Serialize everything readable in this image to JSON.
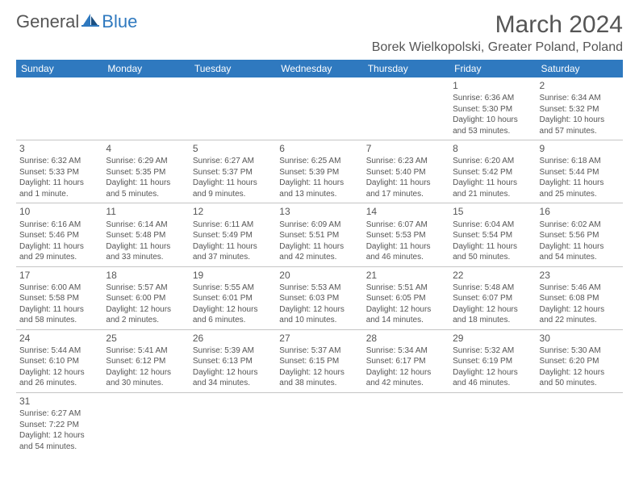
{
  "logo": {
    "text1": "General",
    "text2": "Blue"
  },
  "title": "March 2024",
  "location": "Borek Wielkopolski, Greater Poland, Poland",
  "colors": {
    "header_bg": "#2f79bf",
    "text": "#555555",
    "divider": "#c5c5c5",
    "white": "#ffffff"
  },
  "weekdays": [
    "Sunday",
    "Monday",
    "Tuesday",
    "Wednesday",
    "Thursday",
    "Friday",
    "Saturday"
  ],
  "weeks": [
    [
      null,
      null,
      null,
      null,
      null,
      {
        "n": "1",
        "sr": "Sunrise: 6:36 AM",
        "ss": "Sunset: 5:30 PM",
        "d1": "Daylight: 10 hours",
        "d2": "and 53 minutes."
      },
      {
        "n": "2",
        "sr": "Sunrise: 6:34 AM",
        "ss": "Sunset: 5:32 PM",
        "d1": "Daylight: 10 hours",
        "d2": "and 57 minutes."
      }
    ],
    [
      {
        "n": "3",
        "sr": "Sunrise: 6:32 AM",
        "ss": "Sunset: 5:33 PM",
        "d1": "Daylight: 11 hours",
        "d2": "and 1 minute."
      },
      {
        "n": "4",
        "sr": "Sunrise: 6:29 AM",
        "ss": "Sunset: 5:35 PM",
        "d1": "Daylight: 11 hours",
        "d2": "and 5 minutes."
      },
      {
        "n": "5",
        "sr": "Sunrise: 6:27 AM",
        "ss": "Sunset: 5:37 PM",
        "d1": "Daylight: 11 hours",
        "d2": "and 9 minutes."
      },
      {
        "n": "6",
        "sr": "Sunrise: 6:25 AM",
        "ss": "Sunset: 5:39 PM",
        "d1": "Daylight: 11 hours",
        "d2": "and 13 minutes."
      },
      {
        "n": "7",
        "sr": "Sunrise: 6:23 AM",
        "ss": "Sunset: 5:40 PM",
        "d1": "Daylight: 11 hours",
        "d2": "and 17 minutes."
      },
      {
        "n": "8",
        "sr": "Sunrise: 6:20 AM",
        "ss": "Sunset: 5:42 PM",
        "d1": "Daylight: 11 hours",
        "d2": "and 21 minutes."
      },
      {
        "n": "9",
        "sr": "Sunrise: 6:18 AM",
        "ss": "Sunset: 5:44 PM",
        "d1": "Daylight: 11 hours",
        "d2": "and 25 minutes."
      }
    ],
    [
      {
        "n": "10",
        "sr": "Sunrise: 6:16 AM",
        "ss": "Sunset: 5:46 PM",
        "d1": "Daylight: 11 hours",
        "d2": "and 29 minutes."
      },
      {
        "n": "11",
        "sr": "Sunrise: 6:14 AM",
        "ss": "Sunset: 5:48 PM",
        "d1": "Daylight: 11 hours",
        "d2": "and 33 minutes."
      },
      {
        "n": "12",
        "sr": "Sunrise: 6:11 AM",
        "ss": "Sunset: 5:49 PM",
        "d1": "Daylight: 11 hours",
        "d2": "and 37 minutes."
      },
      {
        "n": "13",
        "sr": "Sunrise: 6:09 AM",
        "ss": "Sunset: 5:51 PM",
        "d1": "Daylight: 11 hours",
        "d2": "and 42 minutes."
      },
      {
        "n": "14",
        "sr": "Sunrise: 6:07 AM",
        "ss": "Sunset: 5:53 PM",
        "d1": "Daylight: 11 hours",
        "d2": "and 46 minutes."
      },
      {
        "n": "15",
        "sr": "Sunrise: 6:04 AM",
        "ss": "Sunset: 5:54 PM",
        "d1": "Daylight: 11 hours",
        "d2": "and 50 minutes."
      },
      {
        "n": "16",
        "sr": "Sunrise: 6:02 AM",
        "ss": "Sunset: 5:56 PM",
        "d1": "Daylight: 11 hours",
        "d2": "and 54 minutes."
      }
    ],
    [
      {
        "n": "17",
        "sr": "Sunrise: 6:00 AM",
        "ss": "Sunset: 5:58 PM",
        "d1": "Daylight: 11 hours",
        "d2": "and 58 minutes."
      },
      {
        "n": "18",
        "sr": "Sunrise: 5:57 AM",
        "ss": "Sunset: 6:00 PM",
        "d1": "Daylight: 12 hours",
        "d2": "and 2 minutes."
      },
      {
        "n": "19",
        "sr": "Sunrise: 5:55 AM",
        "ss": "Sunset: 6:01 PM",
        "d1": "Daylight: 12 hours",
        "d2": "and 6 minutes."
      },
      {
        "n": "20",
        "sr": "Sunrise: 5:53 AM",
        "ss": "Sunset: 6:03 PM",
        "d1": "Daylight: 12 hours",
        "d2": "and 10 minutes."
      },
      {
        "n": "21",
        "sr": "Sunrise: 5:51 AM",
        "ss": "Sunset: 6:05 PM",
        "d1": "Daylight: 12 hours",
        "d2": "and 14 minutes."
      },
      {
        "n": "22",
        "sr": "Sunrise: 5:48 AM",
        "ss": "Sunset: 6:07 PM",
        "d1": "Daylight: 12 hours",
        "d2": "and 18 minutes."
      },
      {
        "n": "23",
        "sr": "Sunrise: 5:46 AM",
        "ss": "Sunset: 6:08 PM",
        "d1": "Daylight: 12 hours",
        "d2": "and 22 minutes."
      }
    ],
    [
      {
        "n": "24",
        "sr": "Sunrise: 5:44 AM",
        "ss": "Sunset: 6:10 PM",
        "d1": "Daylight: 12 hours",
        "d2": "and 26 minutes."
      },
      {
        "n": "25",
        "sr": "Sunrise: 5:41 AM",
        "ss": "Sunset: 6:12 PM",
        "d1": "Daylight: 12 hours",
        "d2": "and 30 minutes."
      },
      {
        "n": "26",
        "sr": "Sunrise: 5:39 AM",
        "ss": "Sunset: 6:13 PM",
        "d1": "Daylight: 12 hours",
        "d2": "and 34 minutes."
      },
      {
        "n": "27",
        "sr": "Sunrise: 5:37 AM",
        "ss": "Sunset: 6:15 PM",
        "d1": "Daylight: 12 hours",
        "d2": "and 38 minutes."
      },
      {
        "n": "28",
        "sr": "Sunrise: 5:34 AM",
        "ss": "Sunset: 6:17 PM",
        "d1": "Daylight: 12 hours",
        "d2": "and 42 minutes."
      },
      {
        "n": "29",
        "sr": "Sunrise: 5:32 AM",
        "ss": "Sunset: 6:19 PM",
        "d1": "Daylight: 12 hours",
        "d2": "and 46 minutes."
      },
      {
        "n": "30",
        "sr": "Sunrise: 5:30 AM",
        "ss": "Sunset: 6:20 PM",
        "d1": "Daylight: 12 hours",
        "d2": "and 50 minutes."
      }
    ],
    [
      {
        "n": "31",
        "sr": "Sunrise: 6:27 AM",
        "ss": "Sunset: 7:22 PM",
        "d1": "Daylight: 12 hours",
        "d2": "and 54 minutes."
      },
      null,
      null,
      null,
      null,
      null,
      null
    ]
  ]
}
